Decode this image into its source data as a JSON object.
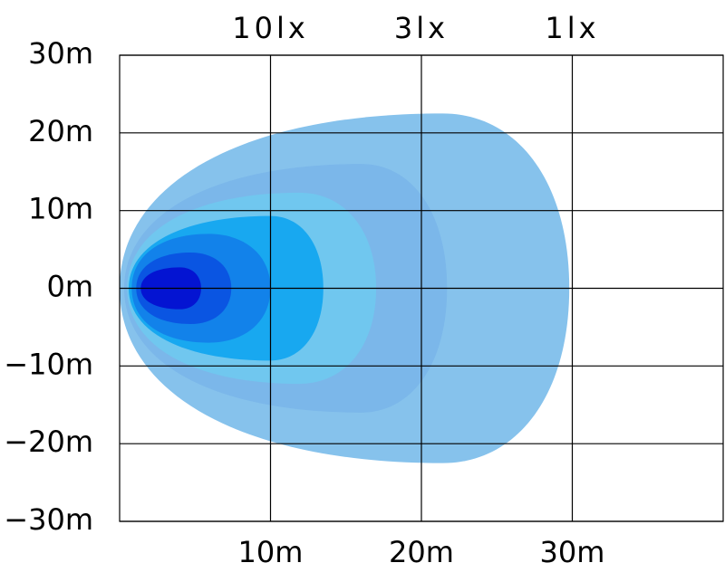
{
  "chart_data": {
    "type": "contour",
    "xlim": [
      0,
      40
    ],
    "ylim": [
      -30,
      30
    ],
    "xticks": [
      {
        "value": 10,
        "label": "10m"
      },
      {
        "value": 20,
        "label": "20m"
      },
      {
        "value": 30,
        "label": "30m"
      }
    ],
    "yticks": [
      {
        "value": 30,
        "label": "30m"
      },
      {
        "value": 20,
        "label": "20m"
      },
      {
        "value": 10,
        "label": "10m"
      },
      {
        "value": 0,
        "label": "0m"
      },
      {
        "value": -10,
        "label": "−10m"
      },
      {
        "value": -20,
        "label": "−20m"
      },
      {
        "value": -30,
        "label": "−30m"
      }
    ],
    "x2ticks": [
      {
        "value": 10,
        "label": "10lx"
      },
      {
        "value": 20,
        "label": "3lx"
      },
      {
        "value": 30,
        "label": "1lx"
      }
    ],
    "grid": true,
    "series": [
      {
        "color": "#86c2ec",
        "start": 0,
        "peak_x": 21.4,
        "half_width": 22.5,
        "reach": 29.8
      },
      {
        "color": "#7bb7ea",
        "start": 0.3,
        "peak_x": 16,
        "half_width": 16,
        "reach": 21.7
      },
      {
        "color": "#70c7ef",
        "start": 0.5,
        "peak_x": 11.9,
        "half_width": 12.3,
        "reach": 17
      },
      {
        "color": "#18a8f0",
        "start": 0.6,
        "peak_x": 10,
        "half_width": 9.3,
        "reach": 13.5
      },
      {
        "color": "#1282ea",
        "start": 0.8,
        "peak_x": 5.9,
        "half_width": 7,
        "reach": 10
      },
      {
        "color": "#0a55e2",
        "start": 1.1,
        "peak_x": 4.7,
        "half_width": 4.6,
        "reach": 7.4
      },
      {
        "color": "#0414d2",
        "start": 1.4,
        "peak_x": 4,
        "half_width": 2.7,
        "reach": 5.4
      }
    ]
  }
}
